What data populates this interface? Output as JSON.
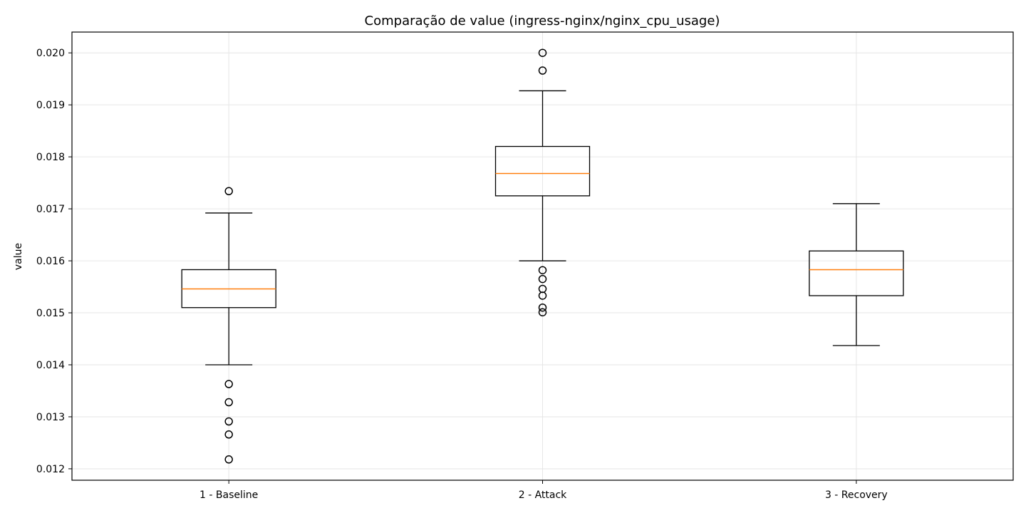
{
  "chart_data": {
    "type": "box",
    "title": "Comparação de value (ingress-nginx/nginx_cpu_usage)",
    "xlabel": "",
    "ylabel": "value",
    "ylim": [
      0.01178,
      0.0204
    ],
    "yticks": [
      0.012,
      0.013,
      0.014,
      0.015,
      0.016,
      0.017,
      0.018,
      0.019,
      0.02
    ],
    "ytick_labels": [
      "0.012",
      "0.013",
      "0.014",
      "0.015",
      "0.016",
      "0.017",
      "0.018",
      "0.019",
      "0.020"
    ],
    "grid": true,
    "categories": [
      "1 - Baseline",
      "2 - Attack",
      "3 - Recovery"
    ],
    "boxes": [
      {
        "category": "1 - Baseline",
        "whisker_low": 0.014,
        "q1": 0.0151,
        "median": 0.01546,
        "q3": 0.01583,
        "whisker_high": 0.01692,
        "outliers": [
          0.01734,
          0.01363,
          0.01328,
          0.01291,
          0.01266,
          0.01218
        ]
      },
      {
        "category": "2 - Attack",
        "whisker_low": 0.016,
        "q1": 0.01725,
        "median": 0.01768,
        "q3": 0.0182,
        "whisker_high": 0.01927,
        "outliers": [
          0.02,
          0.01966,
          0.01582,
          0.01565,
          0.01546,
          0.01533,
          0.0151,
          0.01501
        ]
      },
      {
        "category": "3 - Recovery",
        "whisker_low": 0.01437,
        "q1": 0.01533,
        "median": 0.01583,
        "q3": 0.01619,
        "whisker_high": 0.0171,
        "outliers": []
      }
    ],
    "colors": {
      "box": "#000000",
      "median": "#ff7f0e",
      "grid": "#e6e6e6",
      "background": "#ffffff"
    }
  }
}
